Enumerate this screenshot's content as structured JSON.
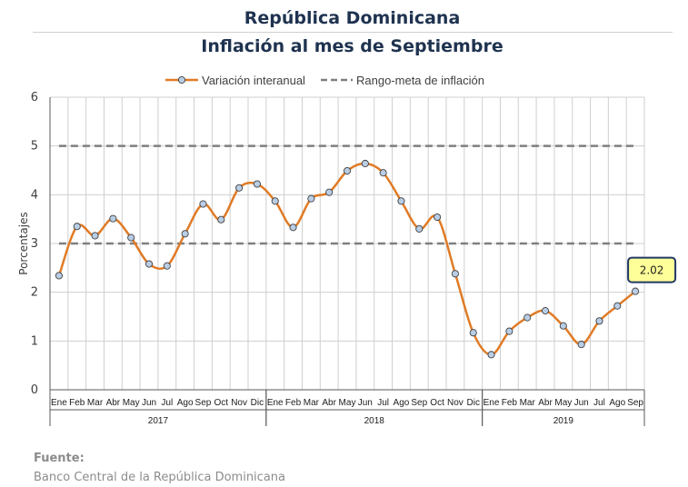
{
  "header": {
    "title": "República Dominicana",
    "subtitle": "Inflación al mes de Septiembre"
  },
  "footer": {
    "label": "Fuente:",
    "source": "Banco Central de la República Dominicana"
  },
  "chart_data": {
    "type": "line",
    "ylabel": "Porcentajes",
    "ylim": [
      0,
      6
    ],
    "yticks": [
      0,
      1,
      2,
      3,
      4,
      5,
      6
    ],
    "grid": true,
    "legend_position": "top",
    "categories": [
      "Ene",
      "Feb",
      "Mar",
      "Abr",
      "May",
      "Jun",
      "Jul",
      "Ago",
      "Sep",
      "Oct",
      "Nov",
      "Dic",
      "Ene",
      "Feb",
      "Mar",
      "Abr",
      "May",
      "Jun",
      "Jul",
      "Ago",
      "Sep",
      "Oct",
      "Nov",
      "Dic",
      "Ene",
      "Feb",
      "Mar",
      "Abr",
      "May",
      "Jun",
      "Jul",
      "Ago",
      "Sep"
    ],
    "years": [
      {
        "label": "2017",
        "start": 0,
        "count": 12
      },
      {
        "label": "2018",
        "start": 12,
        "count": 12
      },
      {
        "label": "2019",
        "start": 24,
        "count": 9
      }
    ],
    "series": [
      {
        "name": "Variación interanual",
        "color": "#e07b26",
        "marker_color": "#b9cde5",
        "values": [
          2.34,
          3.35,
          3.16,
          3.51,
          3.12,
          2.58,
          2.54,
          3.2,
          3.81,
          3.49,
          4.14,
          4.22,
          3.87,
          3.33,
          3.92,
          4.05,
          4.49,
          4.64,
          4.45,
          3.87,
          3.3,
          3.54,
          2.38,
          1.17,
          0.72,
          1.2,
          1.48,
          1.62,
          1.31,
          0.93,
          1.41,
          1.72,
          2.02
        ]
      },
      {
        "name": "Rango-meta de inflación",
        "color": "#7f7f7f",
        "style": "dashed",
        "bounds": [
          3,
          5
        ]
      }
    ],
    "annotation": {
      "text": "2.02",
      "index": 32,
      "fill": "#ffff99",
      "border": "#1f3864"
    }
  }
}
